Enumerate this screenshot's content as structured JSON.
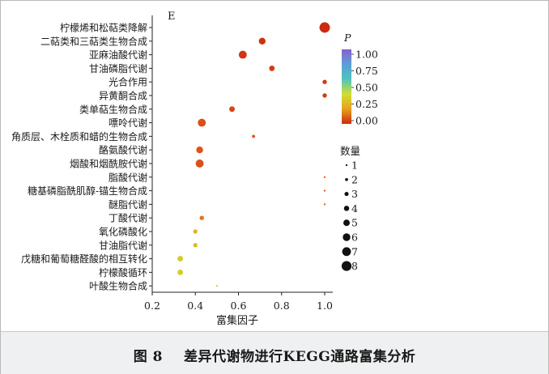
{
  "chart_data": {
    "type": "scatter",
    "panel_label": "E",
    "xlabel": "富集因子",
    "ylabel": "",
    "xlim": [
      0.2,
      1.05
    ],
    "x_ticks": [
      "0.2",
      "0.4",
      "0.6",
      "0.8",
      "1.0"
    ],
    "grid": false,
    "color_legend": {
      "title": "P",
      "ticks": [
        "1.00",
        "0.75",
        "0.50",
        "0.25",
        "0.00"
      ],
      "colors_top_to_bottom": [
        "#8a5fcf",
        "#5b9fd6",
        "#4fc3c0",
        "#cfe030",
        "#e8a020",
        "#cc2a10"
      ],
      "placement": "right"
    },
    "size_legend": {
      "title": "数量",
      "items": [
        "1",
        "2",
        "3",
        "4",
        "5",
        "6",
        "7",
        "8"
      ],
      "placement": "right"
    },
    "points": [
      {
        "label": "柠檬烯和松萜类降解",
        "x": 1.0,
        "count": 8,
        "p": 0.0
      },
      {
        "label": "二萜类和三萜类生物合成",
        "x": 0.71,
        "count": 5,
        "p": 0.02
      },
      {
        "label": "亚麻油酸代谢",
        "x": 0.62,
        "count": 6,
        "p": 0.03
      },
      {
        "label": "甘油磷脂代谢",
        "x": 0.755,
        "count": 4,
        "p": 0.05
      },
      {
        "label": "光合作用",
        "x": 1.0,
        "count": 3,
        "p": 0.05
      },
      {
        "label": "异黄酮合成",
        "x": 1.0,
        "count": 3,
        "p": 0.05
      },
      {
        "label": "类单萜生物合成",
        "x": 0.57,
        "count": 4,
        "p": 0.07
      },
      {
        "label": "嘌呤代谢",
        "x": 0.43,
        "count": 6,
        "p": 0.1
      },
      {
        "label": "角质层、木栓质和蜡的生物合成",
        "x": 0.67,
        "count": 2,
        "p": 0.12
      },
      {
        "label": "酪氨酸代谢",
        "x": 0.42,
        "count": 5,
        "p": 0.11
      },
      {
        "label": "烟酸和烟酰胺代谢",
        "x": 0.42,
        "count": 6,
        "p": 0.1
      },
      {
        "label": "脂酸代谢",
        "x": 1.0,
        "count": 1,
        "p": 0.15
      },
      {
        "label": "糖基磷脂酰肌醇-锚生物合成",
        "x": 1.0,
        "count": 1,
        "p": 0.15
      },
      {
        "label": "醚脂代谢",
        "x": 1.0,
        "count": 1,
        "p": 0.15
      },
      {
        "label": "丁酸代谢",
        "x": 0.43,
        "count": 3,
        "p": 0.17
      },
      {
        "label": "氧化磷酸化",
        "x": 0.4,
        "count": 3,
        "p": 0.3
      },
      {
        "label": "甘油脂代谢",
        "x": 0.4,
        "count": 3,
        "p": 0.32
      },
      {
        "label": "戊糖和葡萄糖醛酸的相互转化",
        "x": 0.33,
        "count": 4,
        "p": 0.35
      },
      {
        "label": "柠檬酸循环",
        "x": 0.33,
        "count": 4,
        "p": 0.35
      },
      {
        "label": "叶酸生物合成",
        "x": 0.5,
        "count": 1,
        "p": 0.38
      }
    ]
  },
  "caption": {
    "number": "图 8",
    "text": "差异代谢物进行KEGG通路富集分析"
  }
}
